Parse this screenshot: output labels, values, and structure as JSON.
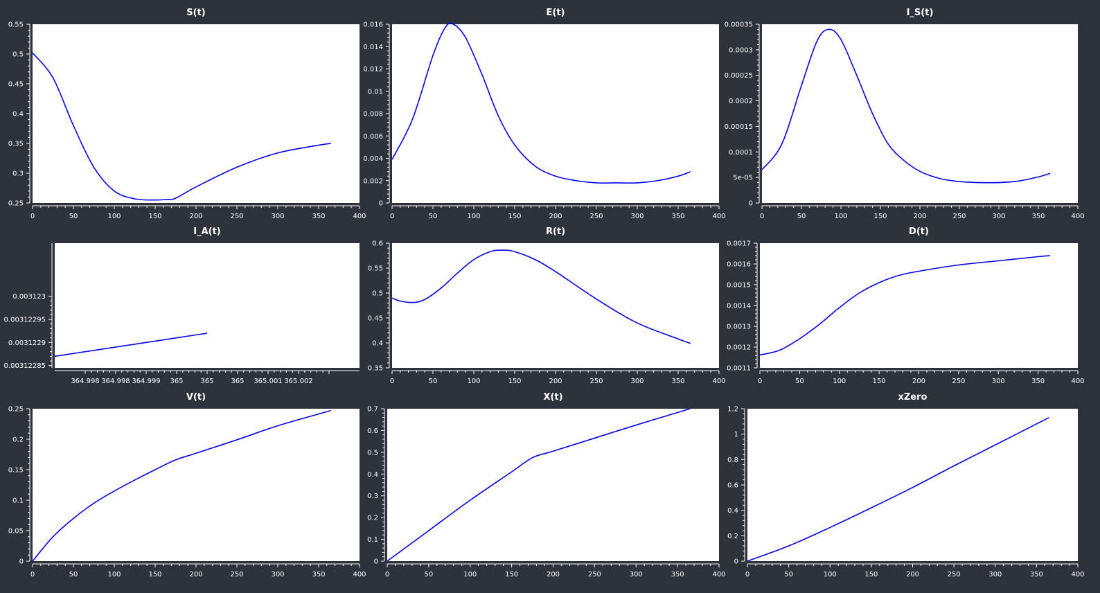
{
  "colors": {
    "background": "#2e323b",
    "plot_bg": "#ffffff",
    "line": "#0000ee",
    "text": "#ffffff"
  },
  "chart_data": [
    {
      "type": "line",
      "title": "S(t)",
      "xlim": [
        0,
        400
      ],
      "ylim": [
        0.25,
        0.55
      ],
      "x_ticks": [
        0,
        50,
        100,
        150,
        200,
        250,
        300,
        350,
        400
      ],
      "y_ticks": [
        0.25,
        0.3,
        0.35,
        0.4,
        0.45,
        0.5,
        0.55
      ],
      "series": [
        {
          "x": [
            0,
            25,
            50,
            75,
            100,
            125,
            150,
            165,
            175,
            200,
            250,
            300,
            350,
            365
          ],
          "y": [
            0.502,
            0.46,
            0.38,
            0.31,
            0.27,
            0.257,
            0.255,
            0.256,
            0.258,
            0.277,
            0.31,
            0.334,
            0.347,
            0.35
          ]
        }
      ]
    },
    {
      "type": "line",
      "title": "E(t)",
      "xlim": [
        0,
        400
      ],
      "ylim": [
        0,
        0.016
      ],
      "x_ticks": [
        0,
        50,
        100,
        150,
        200,
        250,
        300,
        350,
        400
      ],
      "y_ticks": [
        0,
        0.002,
        0.004,
        0.006,
        0.008,
        0.01,
        0.012,
        0.014,
        0.016
      ],
      "series": [
        {
          "x": [
            0,
            25,
            50,
            65,
            75,
            90,
            110,
            130,
            150,
            175,
            200,
            225,
            250,
            275,
            300,
            325,
            350,
            365
          ],
          "y": [
            0.0039,
            0.0075,
            0.0132,
            0.0157,
            0.016,
            0.0148,
            0.0115,
            0.0078,
            0.0052,
            0.0033,
            0.0024,
            0.002,
            0.0018,
            0.0018,
            0.0018,
            0.002,
            0.0024,
            0.0028
          ]
        }
      ]
    },
    {
      "type": "line",
      "title": "I_S(t)",
      "xlim": [
        0,
        400
      ],
      "ylim": [
        0,
        0.00035
      ],
      "x_ticks": [
        0,
        50,
        100,
        150,
        200,
        250,
        300,
        350,
        400
      ],
      "y_ticks": [
        0,
        5e-05,
        0.0001,
        0.00015,
        0.0002,
        0.00025,
        0.0003,
        0.00035
      ],
      "y_tick_labels": [
        "0",
        "5e-05",
        "0.0001",
        "0.00015",
        "0.0002",
        "0.00025",
        "0.0003",
        "0.00035"
      ],
      "series": [
        {
          "x": [
            0,
            25,
            50,
            70,
            85,
            100,
            120,
            140,
            160,
            180,
            200,
            225,
            250,
            275,
            300,
            325,
            350,
            365
          ],
          "y": [
            6.5e-05,
            0.000115,
            0.00023,
            0.000318,
            0.00034,
            0.00032,
            0.00025,
            0.000175,
            0.000115,
            8.3e-05,
            6.2e-05,
            4.8e-05,
            4.2e-05,
            4e-05,
            4e-05,
            4.3e-05,
            5.1e-05,
            5.8e-05
          ]
        }
      ]
    },
    {
      "type": "line",
      "title": "I_A(t)",
      "xlim": [
        364.9975,
        365.0025
      ],
      "ylim": [
        0.003122845,
        0.003123115
      ],
      "x_ticks": [
        364.998,
        364.9985,
        364.999,
        364.9995,
        365,
        365.0005,
        365.001,
        365.0015,
        365.002
      ],
      "x_tick_labels": [
        "364.998",
        "364.998",
        "364.999",
        "365",
        "365",
        "365",
        "365.001",
        "365.002",
        ""
      ],
      "y_ticks": [
        0.00312285,
        0.0031229,
        0.00312295,
        0.003123
      ],
      "y_tick_labels": [
        "0.00312285",
        "0.0031229",
        "0.00312295",
        "0.003123"
      ],
      "series": [
        {
          "x": [
            364.9975,
            365.0
          ],
          "y": [
            0.00312287,
            0.00312292
          ]
        }
      ]
    },
    {
      "type": "line",
      "title": "R(t)",
      "xlim": [
        0,
        400
      ],
      "ylim": [
        0.35,
        0.6
      ],
      "x_ticks": [
        0,
        50,
        100,
        150,
        200,
        250,
        300,
        350,
        400
      ],
      "y_ticks": [
        0.35,
        0.4,
        0.45,
        0.5,
        0.55,
        0.6
      ],
      "series": [
        {
          "x": [
            0,
            10,
            25,
            40,
            60,
            80,
            100,
            120,
            135,
            150,
            175,
            200,
            250,
            300,
            350,
            365
          ],
          "y": [
            0.49,
            0.484,
            0.481,
            0.487,
            0.51,
            0.54,
            0.567,
            0.583,
            0.586,
            0.583,
            0.567,
            0.543,
            0.488,
            0.44,
            0.408,
            0.399
          ]
        }
      ]
    },
    {
      "type": "line",
      "title": "D(t)",
      "xlim": [
        0,
        400
      ],
      "ylim": [
        0.0011,
        0.0017
      ],
      "x_ticks": [
        0,
        50,
        100,
        150,
        200,
        250,
        300,
        350,
        400
      ],
      "y_ticks": [
        0.0011,
        0.0012,
        0.0013,
        0.0014,
        0.0015,
        0.0016,
        0.0017
      ],
      "series": [
        {
          "x": [
            0,
            25,
            50,
            75,
            100,
            125,
            150,
            175,
            200,
            250,
            300,
            350,
            365
          ],
          "y": [
            0.001162,
            0.001185,
            0.00124,
            0.00131,
            0.00139,
            0.00146,
            0.00151,
            0.001545,
            0.001565,
            0.001595,
            0.001615,
            0.001635,
            0.00164
          ]
        }
      ]
    },
    {
      "type": "line",
      "title": "V(t)",
      "xlim": [
        0,
        400
      ],
      "ylim": [
        0,
        0.25
      ],
      "x_ticks": [
        0,
        50,
        100,
        150,
        200,
        250,
        300,
        350,
        400
      ],
      "y_ticks": [
        0,
        0.05,
        0.1,
        0.15,
        0.2,
        0.25
      ],
      "series": [
        {
          "x": [
            0,
            25,
            50,
            75,
            100,
            125,
            150,
            175,
            200,
            250,
            300,
            365
          ],
          "y": [
            0,
            0.04,
            0.07,
            0.095,
            0.115,
            0.133,
            0.15,
            0.166,
            0.177,
            0.199,
            0.222,
            0.247
          ]
        }
      ]
    },
    {
      "type": "line",
      "title": "X(t)",
      "xlim": [
        0,
        400
      ],
      "ylim": [
        0,
        0.7
      ],
      "x_ticks": [
        0,
        50,
        100,
        150,
        200,
        250,
        300,
        350,
        400
      ],
      "y_ticks": [
        0,
        0.1,
        0.2,
        0.3,
        0.4,
        0.5,
        0.6,
        0.7
      ],
      "series": [
        {
          "x": [
            0,
            25,
            50,
            100,
            150,
            175,
            200,
            250,
            300,
            365
          ],
          "y": [
            0,
            0.07,
            0.14,
            0.28,
            0.41,
            0.475,
            0.505,
            0.565,
            0.625,
            0.7
          ]
        }
      ]
    },
    {
      "type": "line",
      "title": "xZero",
      "xlim": [
        0,
        400
      ],
      "ylim": [
        0,
        1.2
      ],
      "x_ticks": [
        0,
        50,
        100,
        150,
        200,
        250,
        300,
        350,
        400
      ],
      "y_ticks": [
        0,
        0.2,
        0.4,
        0.6,
        0.8,
        1,
        1.2
      ],
      "series": [
        {
          "x": [
            0,
            50,
            100,
            150,
            200,
            250,
            300,
            365
          ],
          "y": [
            0,
            0.12,
            0.265,
            0.42,
            0.58,
            0.75,
            0.915,
            1.13
          ]
        }
      ]
    }
  ]
}
